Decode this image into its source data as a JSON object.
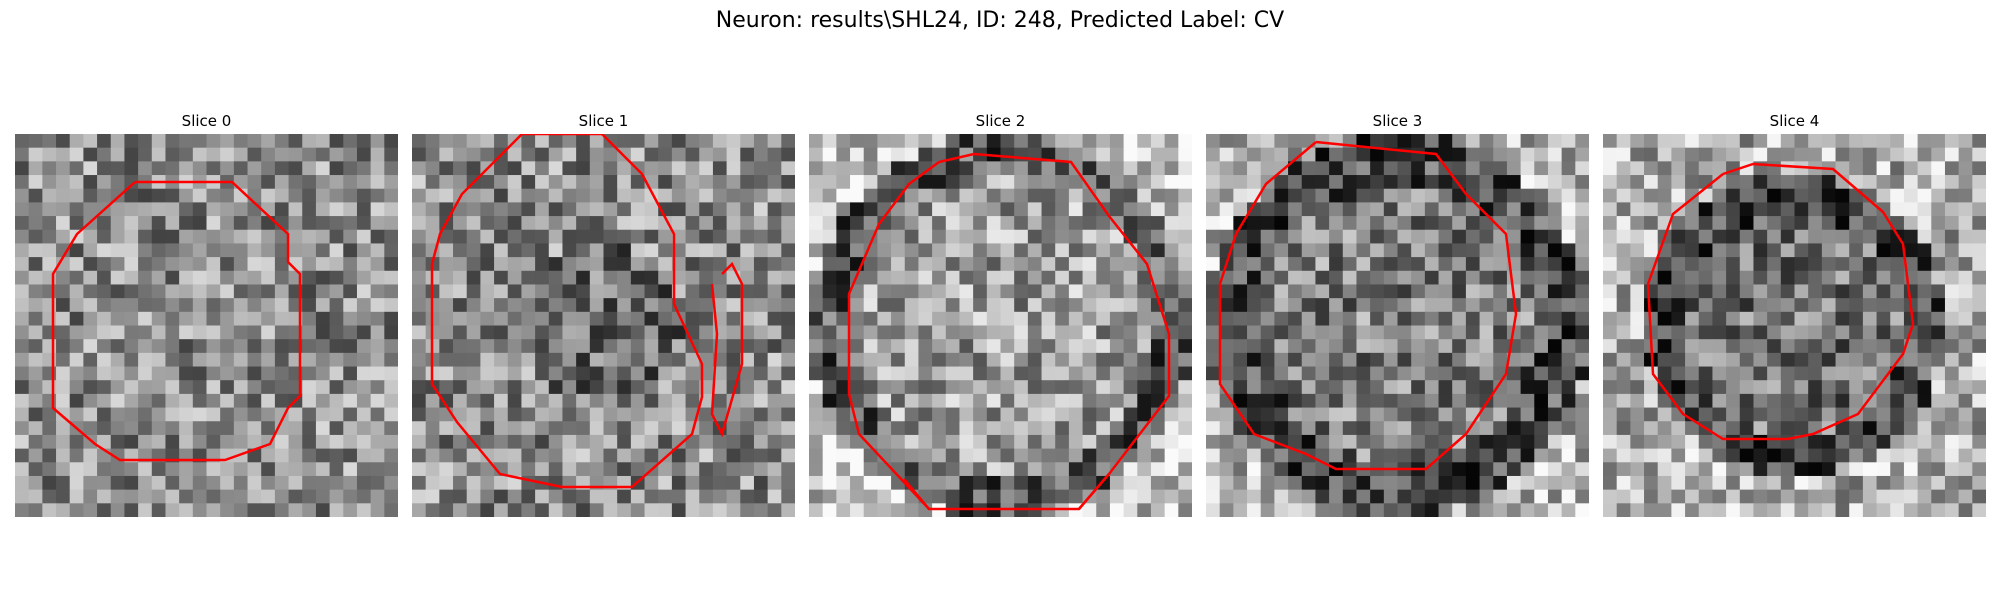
{
  "figure": {
    "title": "Neuron: results\\SHL24, ID: 248, Predicted Label: CV",
    "outline_color": "#ff0000",
    "colormap": "grayscale"
  },
  "slices": [
    {
      "label": "Slice 0",
      "pattern": "ellipse-noisy",
      "seed": 11
    },
    {
      "label": "Slice 1",
      "pattern": "noisy-dark-center",
      "seed": 23
    },
    {
      "label": "Slice 2",
      "pattern": "dark-ring-bright-bg",
      "seed": 37
    },
    {
      "label": "Slice 3",
      "pattern": "dark-ring",
      "seed": 53
    },
    {
      "label": "Slice 4",
      "pattern": "dark-ring-small",
      "seed": 71
    }
  ]
}
